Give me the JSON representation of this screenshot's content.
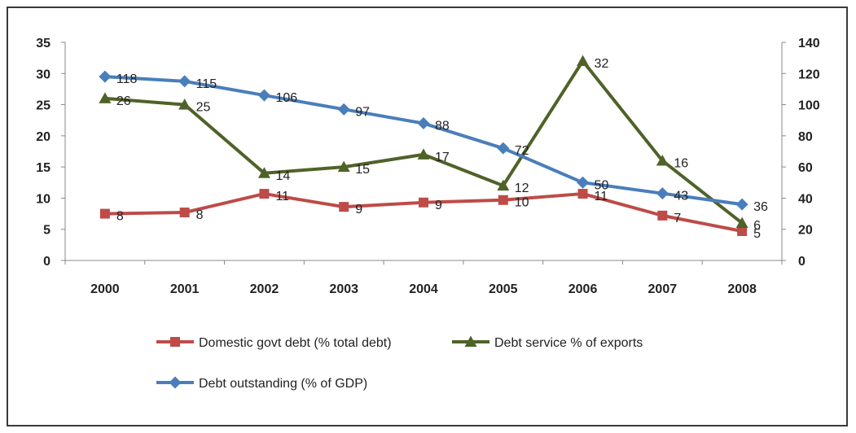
{
  "chart_data": {
    "type": "line",
    "categories": [
      "2000",
      "2001",
      "2002",
      "2003",
      "2004",
      "2005",
      "2006",
      "2007",
      "2008"
    ],
    "y_left": {
      "min": 0,
      "max": 35,
      "step": 5,
      "ticks": [
        "0",
        "5",
        "10",
        "15",
        "20",
        "25",
        "30",
        "35"
      ]
    },
    "y_right": {
      "min": 0,
      "max": 140,
      "step": 20,
      "ticks": [
        "0",
        "20",
        "40",
        "60",
        "80",
        "100",
        "120",
        "140"
      ]
    },
    "grid": false,
    "legend_position": "bottom",
    "series": [
      {
        "name": "Domestic govt debt (% total debt)",
        "axis": "left",
        "color": "#be4b48",
        "marker": "square",
        "values": [
          7.5,
          7.7,
          10.7,
          8.6,
          9.3,
          9.7,
          10.7,
          7.2,
          4.7
        ],
        "labels": [
          "8",
          "8",
          "11",
          "9",
          "9",
          "10",
          "11",
          "7",
          "5"
        ]
      },
      {
        "name": "Debt service % of exports",
        "axis": "left",
        "color": "#4f6228",
        "marker": "triangle",
        "values": [
          26,
          25,
          14,
          15,
          17,
          12,
          32,
          16,
          6
        ],
        "labels": [
          "26",
          "25",
          "14",
          "15",
          "17",
          "12",
          "32",
          "16",
          "6"
        ]
      },
      {
        "name": "Debt outstanding (% of GDP)",
        "axis": "right",
        "color": "#4a7ebb",
        "marker": "diamond",
        "values": [
          118,
          115,
          106,
          97,
          88,
          72,
          50,
          43,
          36
        ],
        "labels": [
          "118",
          "115",
          "106",
          "97",
          "88",
          "72",
          "50",
          "43",
          "36"
        ]
      }
    ]
  }
}
